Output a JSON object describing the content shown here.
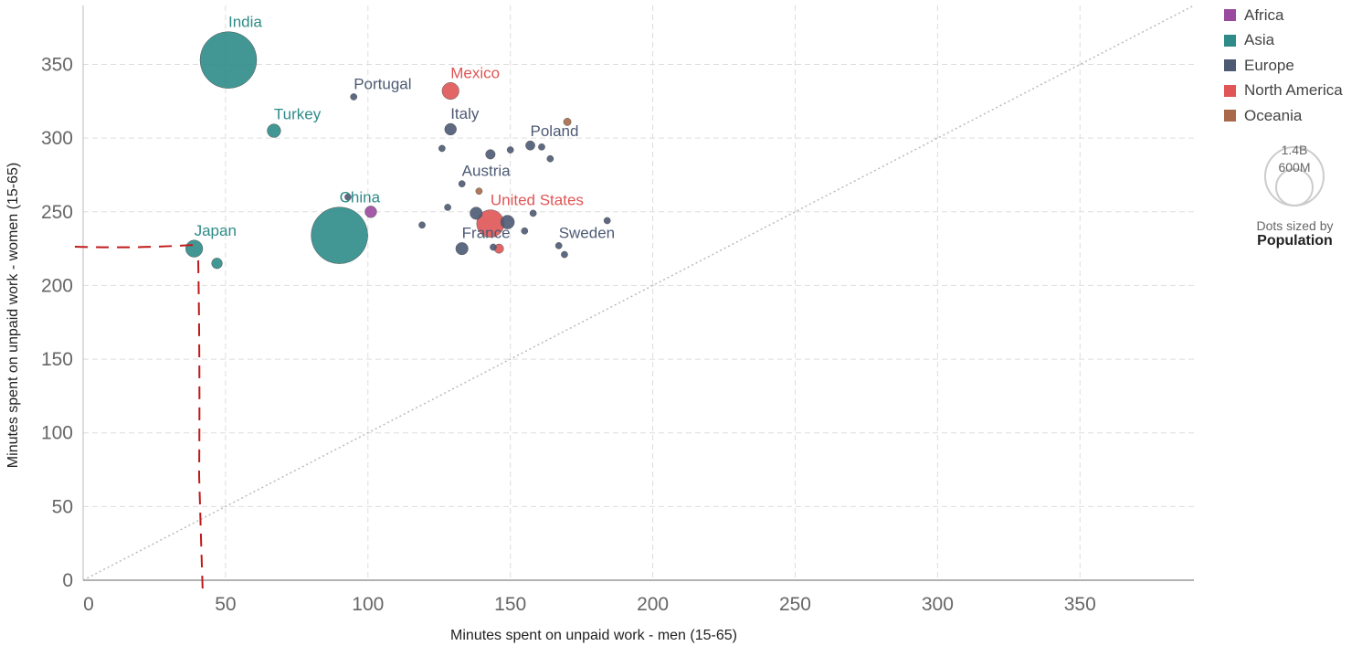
{
  "chart_data": {
    "type": "scatter",
    "xlabel": "Minutes spent on unpaid work - men (15-65)",
    "ylabel": "Minutes spent on unpaid work - women (15-65)",
    "xlim": [
      0,
      390
    ],
    "ylim": [
      0,
      390
    ],
    "x_ticks": [
      "0",
      "50",
      "100",
      "150",
      "200",
      "250",
      "300",
      "350"
    ],
    "y_ticks": [
      "0",
      "50",
      "100",
      "150",
      "200",
      "250",
      "300",
      "350"
    ],
    "grid": true,
    "diagonal_reference_line": true,
    "legend_position": "right",
    "legend": [
      {
        "name": "Africa",
        "color": "#9a4a9e"
      },
      {
        "name": "Asia",
        "color": "#2e8b88"
      },
      {
        "name": "Europe",
        "color": "#4d5a74"
      },
      {
        "name": "North America",
        "color": "#e05555"
      },
      {
        "name": "Oceania",
        "color": "#a8694a"
      }
    ],
    "size_legend": {
      "large": "1.4B",
      "small": "600M",
      "note": "Dots sized by",
      "variable": "Population"
    },
    "points": [
      {
        "label": "India",
        "region": "Asia",
        "x": 51,
        "y": 353,
        "pop": 1400
      },
      {
        "label": "China",
        "region": "Asia",
        "x": 90,
        "y": 234,
        "pop": 1400
      },
      {
        "label": "Turkey",
        "region": "Asia",
        "x": 67,
        "y": 305,
        "pop": 80
      },
      {
        "label": "Japan",
        "region": "Asia",
        "x": 39,
        "y": 225,
        "pop": 127
      },
      {
        "label": "",
        "region": "Asia",
        "x": 47,
        "y": 215,
        "pop": 50
      },
      {
        "label": "Portugal",
        "region": "Europe",
        "x": 95,
        "y": 328,
        "pop": 10
      },
      {
        "label": "",
        "region": "Europe",
        "x": 93,
        "y": 260,
        "pop": 4
      },
      {
        "label": "Mexico",
        "region": "North America",
        "x": 129,
        "y": 332,
        "pop": 125
      },
      {
        "label": "Italy",
        "region": "Europe",
        "x": 129,
        "y": 306,
        "pop": 60
      },
      {
        "label": "Poland",
        "region": "Europe",
        "x": 157,
        "y": 295,
        "pop": 38
      },
      {
        "label": "",
        "region": "Oceania",
        "x": 170,
        "y": 311,
        "pop": 25
      },
      {
        "label": "",
        "region": "Europe",
        "x": 126,
        "y": 293,
        "pop": 10
      },
      {
        "label": "",
        "region": "Europe",
        "x": 143,
        "y": 289,
        "pop": 40
      },
      {
        "label": "",
        "region": "Europe",
        "x": 150,
        "y": 292,
        "pop": 10
      },
      {
        "label": "",
        "region": "Europe",
        "x": 161,
        "y": 294,
        "pop": 10
      },
      {
        "label": "",
        "region": "Europe",
        "x": 164,
        "y": 286,
        "pop": 10
      },
      {
        "label": "Austria",
        "region": "Europe",
        "x": 133,
        "y": 269,
        "pop": 9
      },
      {
        "label": "",
        "region": "Oceania",
        "x": 139,
        "y": 264,
        "pop": 5
      },
      {
        "label": "",
        "region": "Europe",
        "x": 128,
        "y": 253,
        "pop": 10
      },
      {
        "label": "United States",
        "region": "North America",
        "x": 143,
        "y": 242,
        "pop": 330
      },
      {
        "label": "",
        "region": "Europe",
        "x": 138,
        "y": 249,
        "pop": 67
      },
      {
        "label": "",
        "region": "Europe",
        "x": 149,
        "y": 243,
        "pop": 83
      },
      {
        "label": "",
        "region": "Europe",
        "x": 158,
        "y": 249,
        "pop": 5
      },
      {
        "label": "",
        "region": "Europe",
        "x": 184,
        "y": 244,
        "pop": 10
      },
      {
        "label": "",
        "region": "Europe",
        "x": 119,
        "y": 241,
        "pop": 10
      },
      {
        "label": "",
        "region": "Africa",
        "x": 101,
        "y": 250,
        "pop": 60
      },
      {
        "label": "France",
        "region": "Europe",
        "x": 133,
        "y": 225,
        "pop": 67
      },
      {
        "label": "",
        "region": "Europe",
        "x": 144,
        "y": 226,
        "pop": 10
      },
      {
        "label": "",
        "region": "North America",
        "x": 146,
        "y": 225,
        "pop": 38
      },
      {
        "label": "",
        "region": "Europe",
        "x": 155,
        "y": 237,
        "pop": 10
      },
      {
        "label": "Sweden",
        "region": "Europe",
        "x": 167,
        "y": 227,
        "pop": 10
      },
      {
        "label": "",
        "region": "Europe",
        "x": 169,
        "y": 221,
        "pop": 10
      }
    ]
  }
}
